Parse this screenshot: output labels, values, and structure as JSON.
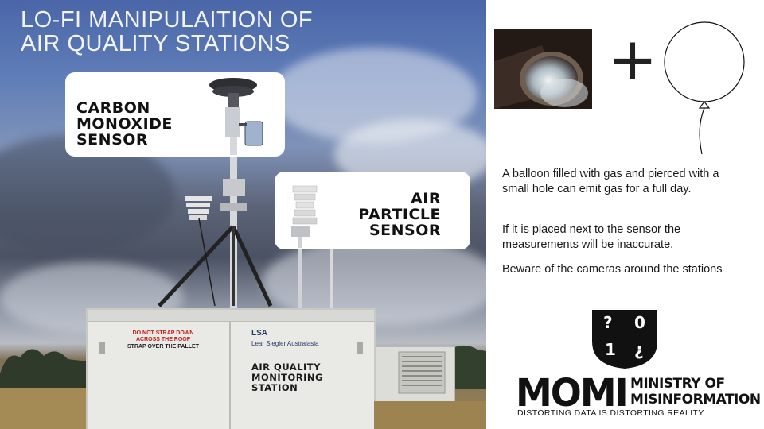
{
  "title": "LO-FI  MANIPULAITION OF\nAIR QUALITY STATIONS",
  "callouts": {
    "carbon": "CARBON\nMONOXIDE\nSENSOR",
    "particle": "AIR\nPARTICLE\nSENSOR"
  },
  "station_labels": {
    "warning_line1": "DO NOT STRAP DOWN",
    "warning_line2": "ACROSS THE ROOF",
    "warning_line3": "STRAP OVER THE PALLET",
    "brand_logo": "LSA",
    "brand_name": "Lear Siegler Australasia",
    "station_name": "AIR QUALITY\nMONITORING\nSTATION"
  },
  "equation": {
    "plus": "+"
  },
  "info": {
    "p1": "A balloon filled with gas and pierced with a small hole can emit gas for a full day.",
    "p2": "If it is placed next to the sensor the measurements will be inaccurate.",
    "p3": "Beware of the cameras around the stations"
  },
  "logo": {
    "shield_tl": "?",
    "shield_tr": "0",
    "shield_bl": "1",
    "shield_br": "¿",
    "momi": "MOMI",
    "ministry_line1": "MINISTRY OF",
    "ministry_line2": "MISINFORMATION",
    "tagline": "DISTORTING DATA IS DISTORTING REALITY"
  },
  "colors": {
    "sky": "#5f7db8",
    "text_dark": "#111111",
    "warning_red": "#c0201a"
  }
}
